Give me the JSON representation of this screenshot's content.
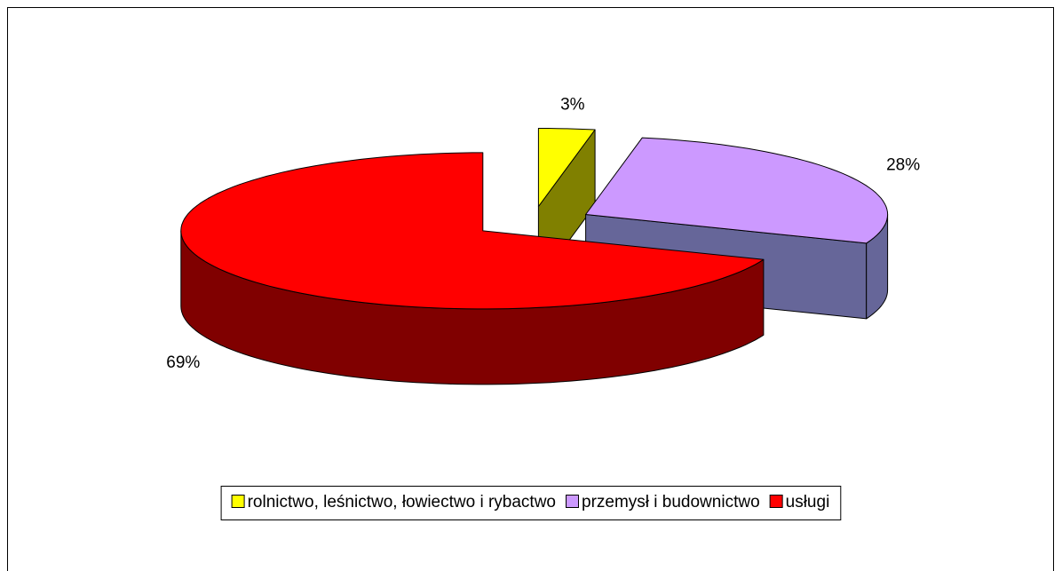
{
  "chart_data": {
    "type": "pie",
    "categories": [
      "rolnictwo, leśnictwo, łowiectwo i rybactwo",
      "przemysł i budownictwo",
      "usługi"
    ],
    "values": [
      3,
      28,
      69
    ],
    "value_labels": [
      "3%",
      "28%",
      "69%"
    ],
    "colors": [
      "#ffff00",
      "#cc99ff",
      "#ff0000"
    ],
    "side_colors": [
      "#808000",
      "#666699",
      "#800000"
    ],
    "legend": "bottom"
  }
}
